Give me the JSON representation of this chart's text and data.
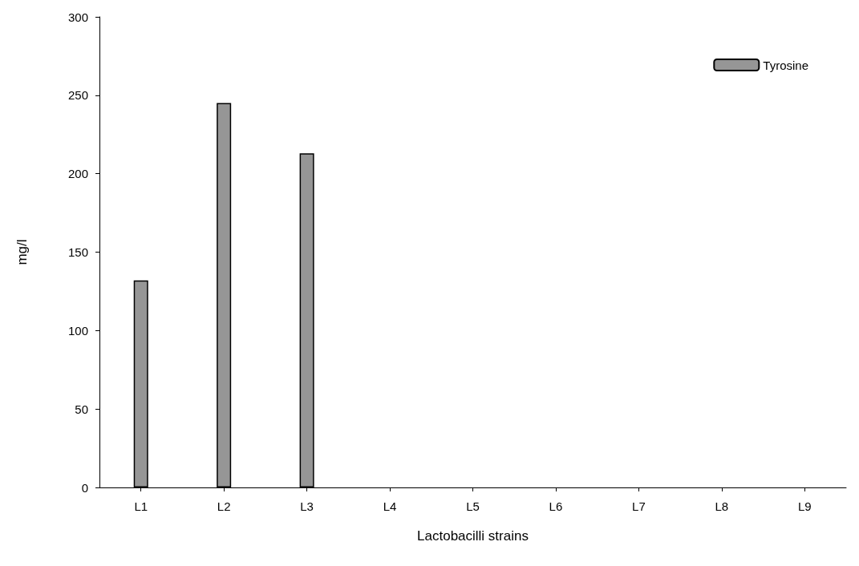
{
  "chart_data": {
    "type": "bar",
    "xlabel": "Lactobacilli strains",
    "ylabel": "mg/l",
    "categories": [
      "L1",
      "L2",
      "L3",
      "L4",
      "L5",
      "L6",
      "L7",
      "L8",
      "L9"
    ],
    "series": [
      {
        "name": "Tyrosine",
        "color": "#969696",
        "values": [
          132,
          245,
          213,
          null,
          null,
          null,
          null,
          null,
          null
        ]
      }
    ],
    "ylim": [
      0,
      300
    ],
    "yticks": [
      0,
      50,
      100,
      150,
      200,
      250,
      300
    ],
    "grid": false,
    "legend": "top right"
  }
}
